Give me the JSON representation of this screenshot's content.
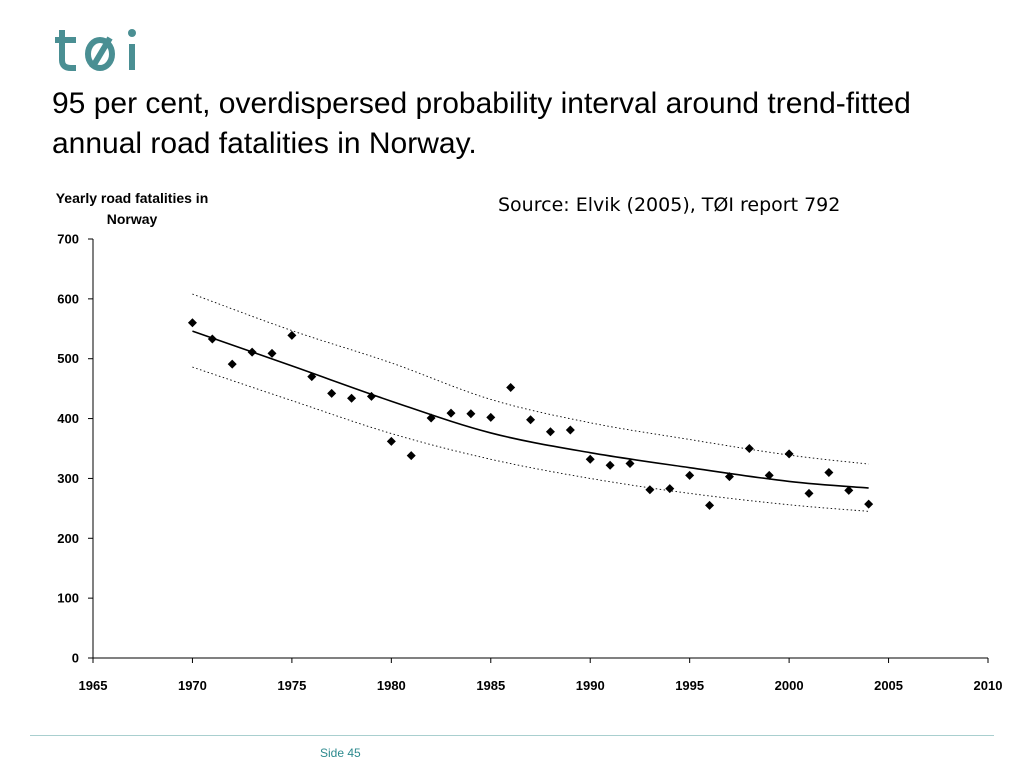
{
  "header": {
    "logo_text": "tøi",
    "title": "95 per cent, overdispersed probability interval around trend-fitted annual road fatalities in Norway."
  },
  "source": "Source: Elvik (2005), TØI report 792",
  "footer": {
    "page_label": "Side 45"
  },
  "colors": {
    "brand": "#4a8f93",
    "footer_text": "#2d8a8e",
    "footer_line": "#a9cfcf"
  },
  "chart_data": {
    "type": "scatter",
    "ylabel": "Yearly road fatalities in Norway",
    "xlim": [
      1965,
      2010
    ],
    "ylim": [
      0,
      700
    ],
    "x_ticks": [
      1965,
      1970,
      1975,
      1980,
      1985,
      1990,
      1995,
      2000,
      2005,
      2010
    ],
    "y_ticks": [
      0,
      100,
      200,
      300,
      400,
      500,
      600,
      700
    ],
    "grid": false,
    "series": [
      {
        "kind": "points",
        "marker": "diamond",
        "x": [
          1970,
          1971,
          1972,
          1973,
          1974,
          1975,
          1976,
          1977,
          1978,
          1979,
          1980,
          1981,
          1982,
          1983,
          1984,
          1985,
          1986,
          1987,
          1988,
          1989,
          1990,
          1991,
          1992,
          1993,
          1994,
          1995,
          1996,
          1997,
          1998,
          1999,
          2000,
          2001,
          2002,
          2003,
          2004
        ],
        "y": [
          560,
          533,
          491,
          511,
          509,
          539,
          470,
          442,
          434,
          437,
          362,
          338,
          401,
          409,
          408,
          402,
          452,
          398,
          378,
          381,
          332,
          322,
          325,
          281,
          283,
          305,
          255,
          303,
          350,
          305,
          341,
          275,
          310,
          280,
          257
        ]
      },
      {
        "kind": "trend",
        "style": "solid",
        "x": [
          1970,
          1975,
          1980,
          1985,
          1990,
          1995,
          2000,
          2004
        ],
        "y": [
          546,
          488,
          429,
          376,
          343,
          318,
          295,
          284
        ]
      },
      {
        "kind": "upper_bound",
        "style": "dotted",
        "x": [
          1970,
          1975,
          1980,
          1985,
          1990,
          1995,
          2000,
          2004
        ],
        "y": [
          608,
          547,
          493,
          432,
          393,
          365,
          339,
          324
        ]
      },
      {
        "kind": "lower_bound",
        "style": "dotted",
        "x": [
          1970,
          1975,
          1980,
          1985,
          1990,
          1995,
          2000,
          2004
        ],
        "y": [
          486,
          430,
          375,
          332,
          300,
          275,
          256,
          245
        ]
      }
    ]
  }
}
